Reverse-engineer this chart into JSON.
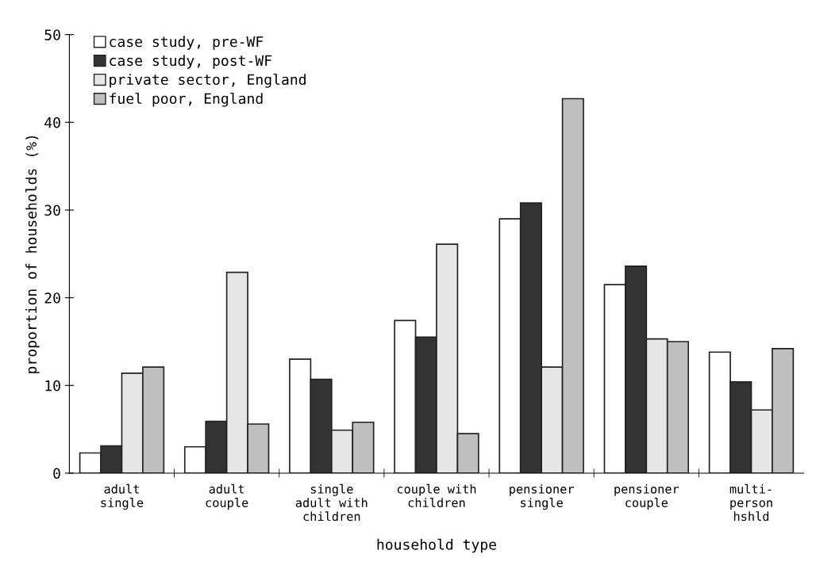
{
  "chart_data": {
    "type": "bar",
    "xlabel": "household type",
    "ylabel": "proportion of households (%)",
    "categories": [
      "adult\nsingle",
      "adult\ncouple",
      "single\nadult with\nchildren",
      "couple with\nchildren",
      "pensioner\nsingle",
      "pensioner\ncouple",
      "multi-\nperson\nhshld"
    ],
    "series": [
      {
        "name": "case study, pre-WF",
        "color": "#ffffff",
        "values": [
          2.3,
          3.0,
          13.0,
          17.4,
          29.0,
          21.5,
          13.8
        ]
      },
      {
        "name": "case study, post-WF",
        "color": "#333333",
        "values": [
          3.1,
          5.9,
          10.7,
          15.5,
          30.8,
          23.6,
          10.4
        ]
      },
      {
        "name": "private sector, England",
        "color": "#e6e6e6",
        "values": [
          11.4,
          22.9,
          4.9,
          26.1,
          12.1,
          15.3,
          7.2
        ]
      },
      {
        "name": "fuel poor, England",
        "color": "#bfbfbf",
        "values": [
          12.1,
          5.6,
          5.8,
          4.5,
          42.7,
          15.0,
          14.2
        ]
      }
    ],
    "ylim": [
      0,
      50
    ],
    "yticks": [
      0,
      10,
      20,
      30,
      40,
      50
    ],
    "grid": false,
    "legend": "top left"
  }
}
